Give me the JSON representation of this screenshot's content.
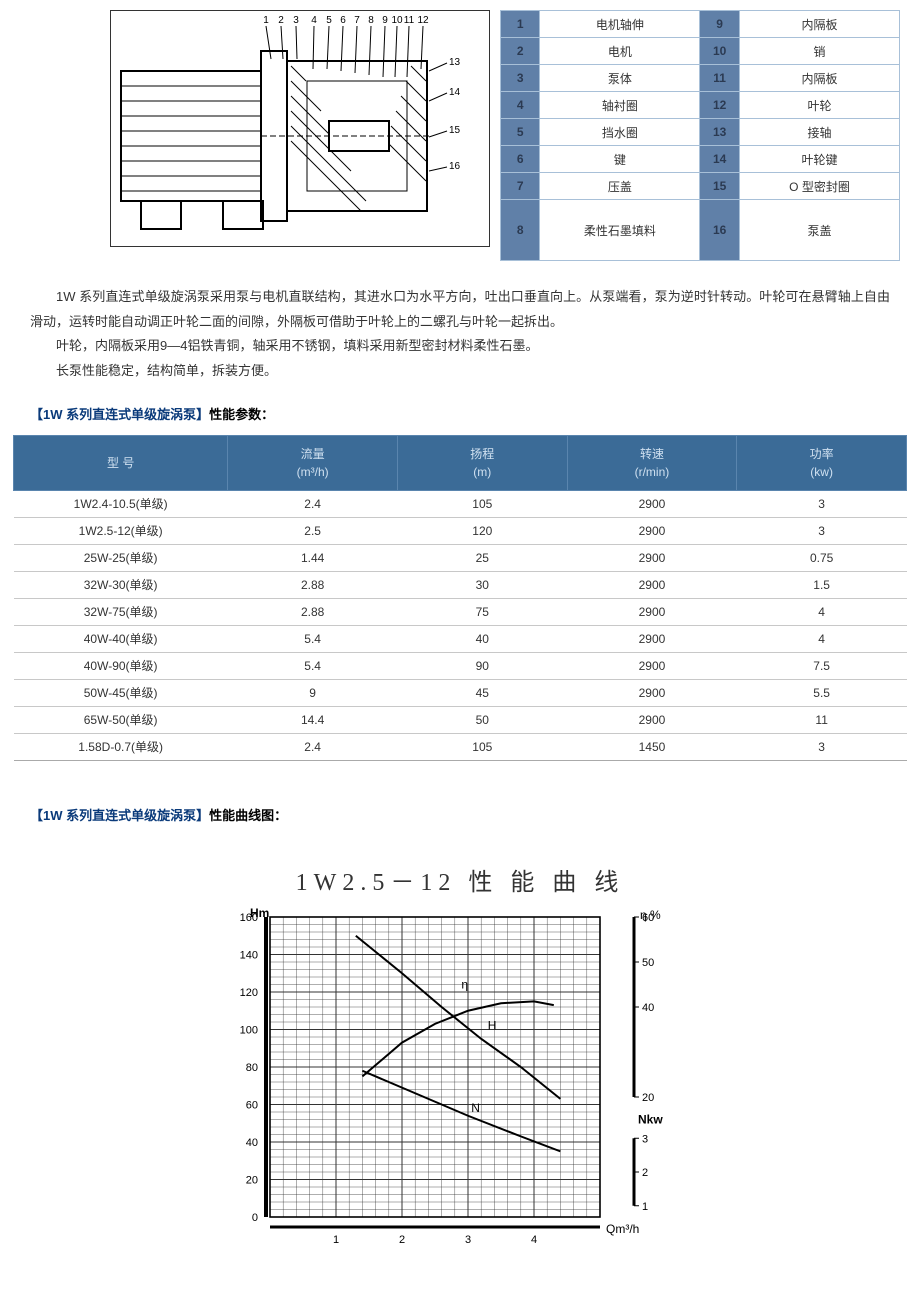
{
  "parts": [
    {
      "n1": "1",
      "l1": "电机轴伸",
      "n2": "9",
      "l2": "内隔板"
    },
    {
      "n1": "2",
      "l1": "电机",
      "n2": "10",
      "l2": "销"
    },
    {
      "n1": "3",
      "l1": "泵体",
      "n2": "11",
      "l2": "内隔板"
    },
    {
      "n1": "4",
      "l1": "轴衬圈",
      "n2": "12",
      "l2": "叶轮"
    },
    {
      "n1": "5",
      "l1": "挡水圈",
      "n2": "13",
      "l2": "接轴"
    },
    {
      "n1": "6",
      "l1": "键",
      "n2": "14",
      "l2": "叶轮键"
    },
    {
      "n1": "7",
      "l1": "压盖",
      "n2": "15",
      "l2": "O 型密封圈"
    },
    {
      "n1": "8",
      "l1": "柔性石墨填料",
      "n2": "16",
      "l2": "泵盖",
      "tall": true
    }
  ],
  "desc": {
    "p1": "1W 系列直连式单级旋涡泵采用泵与电机直联结构，其进水口为水平方向，吐出口垂直向上。从泵端看，泵为逆时针转动。叶轮可在悬臂轴上自由滑动，运转时能自动调正叶轮二面的间隙，外隔板可借助于叶轮上的二螺孔与叶轮一起拆出。",
    "p2": "叶轮，内隔板采用9—4铝铁青铜，轴采用不锈钢，填料采用新型密封材料柔性石墨。",
    "p3": "长泵性能稳定，结构简单，拆装方便。"
  },
  "heading_specs_blue": "【1W 系列直连式单级旋涡泵】",
  "heading_specs_black": "性能参数：",
  "heading_curve_blue": "【1W 系列直连式单级旋涡泵】",
  "heading_curve_black": "性能曲线图：",
  "spec_headers": {
    "c1": "型 号",
    "c2_a": "流量",
    "c2_b": "(m³/h)",
    "c3_a": "扬程",
    "c3_b": "(m)",
    "c4_a": "转速",
    "c4_b": "(r/min)",
    "c5_a": "功率",
    "c5_b": "(kw)"
  },
  "spec_rows": [
    [
      "1W2.4-10.5(单级)",
      "2.4",
      "105",
      "2900",
      "3"
    ],
    [
      "1W2.5-12(单级)",
      "2.5",
      "120",
      "2900",
      "3"
    ],
    [
      "25W-25(单级)",
      "1.44",
      "25",
      "2900",
      "0.75"
    ],
    [
      "32W-30(单级)",
      "2.88",
      "30",
      "2900",
      "1.5"
    ],
    [
      "32W-75(单级)",
      "2.88",
      "75",
      "2900",
      "4"
    ],
    [
      "40W-40(单级)",
      "5.4",
      "40",
      "2900",
      "4"
    ],
    [
      "40W-90(单级)",
      "5.4",
      "90",
      "2900",
      "7.5"
    ],
    [
      "50W-45(单级)",
      "9",
      "45",
      "2900",
      "5.5"
    ],
    [
      "65W-50(单级)",
      "14.4",
      "50",
      "2900",
      "11"
    ],
    [
      "1.58D-0.7(单级)",
      "2.4",
      "105",
      "1450",
      "3"
    ]
  ],
  "chart": {
    "title": "1W2.5－12 性 能 曲 线",
    "y_label": "Hm",
    "y_ticks": [
      0,
      20,
      40,
      60,
      80,
      100,
      120,
      140,
      160
    ],
    "ylim": [
      0,
      160
    ],
    "x_label": "Qm³/h",
    "x_ticks": [
      1,
      2,
      3,
      4
    ],
    "xlim": [
      0,
      5
    ],
    "right_eta_label": "η %",
    "right_eta_ticks": [
      20,
      40,
      50,
      60
    ],
    "right_N_label": "Nkw",
    "right_N_ticks": [
      1,
      2,
      3
    ],
    "grid_step_x": 0.2,
    "grid_step_y": 4,
    "colors": {
      "bg": "#ffffff",
      "grid": "#333333",
      "axis": "#000000",
      "curve": "#000000",
      "text": "#000000"
    },
    "font_sizes": {
      "title": 24,
      "axis_label": 12,
      "tick": 11
    },
    "series": {
      "eta": {
        "label": "η",
        "points": [
          [
            1.4,
            75
          ],
          [
            2.0,
            93
          ],
          [
            2.5,
            103
          ],
          [
            3.0,
            110
          ],
          [
            3.5,
            114
          ],
          [
            4.0,
            115
          ],
          [
            4.3,
            113
          ]
        ]
      },
      "H": {
        "label": "H",
        "points": [
          [
            1.3,
            150
          ],
          [
            2.0,
            130
          ],
          [
            2.6,
            112
          ],
          [
            3.2,
            95
          ],
          [
            3.8,
            80
          ],
          [
            4.4,
            63
          ]
        ]
      },
      "N": {
        "label": "N",
        "points": [
          [
            1.4,
            78
          ],
          [
            2.2,
            66
          ],
          [
            3.0,
            54
          ],
          [
            3.8,
            43
          ],
          [
            4.4,
            35
          ]
        ]
      }
    },
    "line_width": 2
  }
}
